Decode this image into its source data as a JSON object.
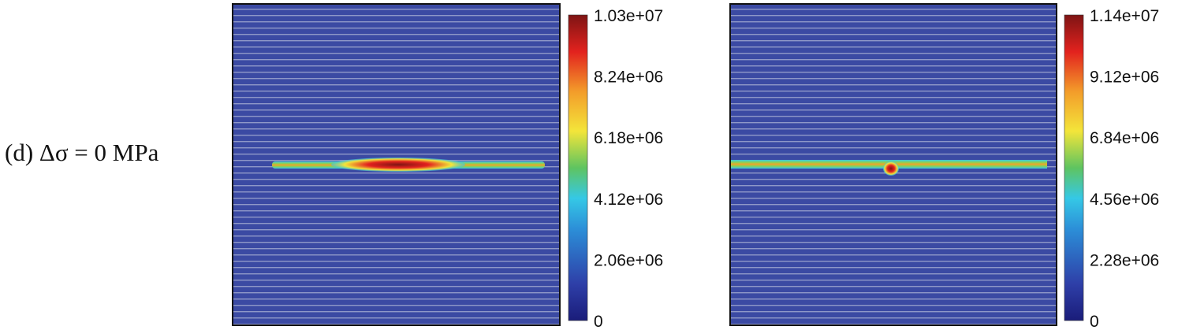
{
  "caption": "(d) Δσ = 0 MPa",
  "chart_data": [
    {
      "type": "heatmap",
      "colormap": "jet",
      "colorbar": {
        "min": 0,
        "max": 10300000,
        "ticks": [
          "0",
          "2.06e+06",
          "4.12e+06",
          "6.18e+06",
          "8.24e+06",
          "1.03e+07"
        ]
      },
      "feature": "horizontal band with central elongated high-value lens"
    },
    {
      "type": "heatmap",
      "colormap": "jet",
      "colorbar": {
        "min": 0,
        "max": 11400000,
        "ticks": [
          "0",
          "2.28e+06",
          "4.56e+06",
          "6.84e+06",
          "9.12e+06",
          "1.14e+07"
        ]
      },
      "feature": "full-width horizontal band with small central high-value spot"
    }
  ],
  "colors": {
    "background": "#3b4aa3",
    "stripe": "#8f98c8",
    "frame": "#111111"
  }
}
